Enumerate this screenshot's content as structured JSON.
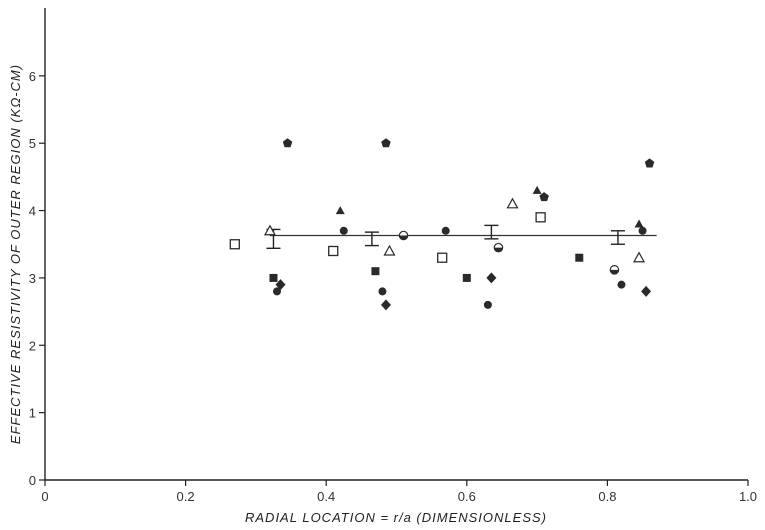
{
  "chart_data": {
    "type": "scatter",
    "title": "",
    "xlabel": "RADIAL  LOCATION = r/a (DIMENSIONLESS)",
    "ylabel": "EFFECTIVE RESISTIVITY OF OUTER REGION (KΩ-CM)",
    "xlim": [
      0,
      1.0
    ],
    "ylim": [
      0,
      7
    ],
    "x_ticks": [
      "0",
      "0.2",
      "0.4",
      "0.6",
      "0.8",
      "1.0"
    ],
    "y_ticks": [
      "0",
      "1",
      "2",
      "3",
      "4",
      "5",
      "6"
    ],
    "grid": false,
    "reference_line": {
      "y": 3.63,
      "x_start": 0.32,
      "x_end": 0.87
    },
    "error_bars": [
      {
        "x": 0.325,
        "y": 3.58,
        "err": 0.14
      },
      {
        "x": 0.465,
        "y": 3.58,
        "err": 0.1
      },
      {
        "x": 0.635,
        "y": 3.68,
        "err": 0.1
      },
      {
        "x": 0.815,
        "y": 3.6,
        "err": 0.1
      }
    ],
    "series": [
      {
        "marker": "square-open",
        "points": [
          [
            0.27,
            3.5
          ],
          [
            0.41,
            3.4
          ],
          [
            0.565,
            3.3
          ],
          [
            0.705,
            3.9
          ]
        ]
      },
      {
        "marker": "square-filled",
        "points": [
          [
            0.325,
            3.0
          ],
          [
            0.47,
            3.1
          ],
          [
            0.6,
            3.0
          ],
          [
            0.76,
            3.3
          ]
        ]
      },
      {
        "marker": "triangle-open",
        "points": [
          [
            0.32,
            3.7
          ],
          [
            0.49,
            3.4
          ],
          [
            0.665,
            4.1
          ],
          [
            0.845,
            3.3
          ]
        ]
      },
      {
        "marker": "triangle-filled",
        "points": [
          [
            0.42,
            4.0
          ],
          [
            0.7,
            4.3
          ],
          [
            0.845,
            3.8
          ]
        ]
      },
      {
        "marker": "circle-filled",
        "points": [
          [
            0.33,
            2.8
          ],
          [
            0.425,
            3.7
          ],
          [
            0.48,
            2.8
          ],
          [
            0.57,
            3.7
          ],
          [
            0.63,
            2.6
          ],
          [
            0.82,
            2.9
          ],
          [
            0.85,
            3.7
          ]
        ]
      },
      {
        "marker": "circle-half",
        "points": [
          [
            0.51,
            3.63
          ],
          [
            0.645,
            3.45
          ],
          [
            0.81,
            3.12
          ]
        ]
      },
      {
        "marker": "diamond-filled",
        "points": [
          [
            0.335,
            2.9
          ],
          [
            0.485,
            2.6
          ],
          [
            0.635,
            3.0
          ],
          [
            0.855,
            2.8
          ]
        ]
      },
      {
        "marker": "pentagon-filled",
        "points": [
          [
            0.345,
            5.0
          ],
          [
            0.485,
            5.0
          ],
          [
            0.71,
            4.2
          ],
          [
            0.86,
            4.7
          ]
        ]
      }
    ]
  }
}
